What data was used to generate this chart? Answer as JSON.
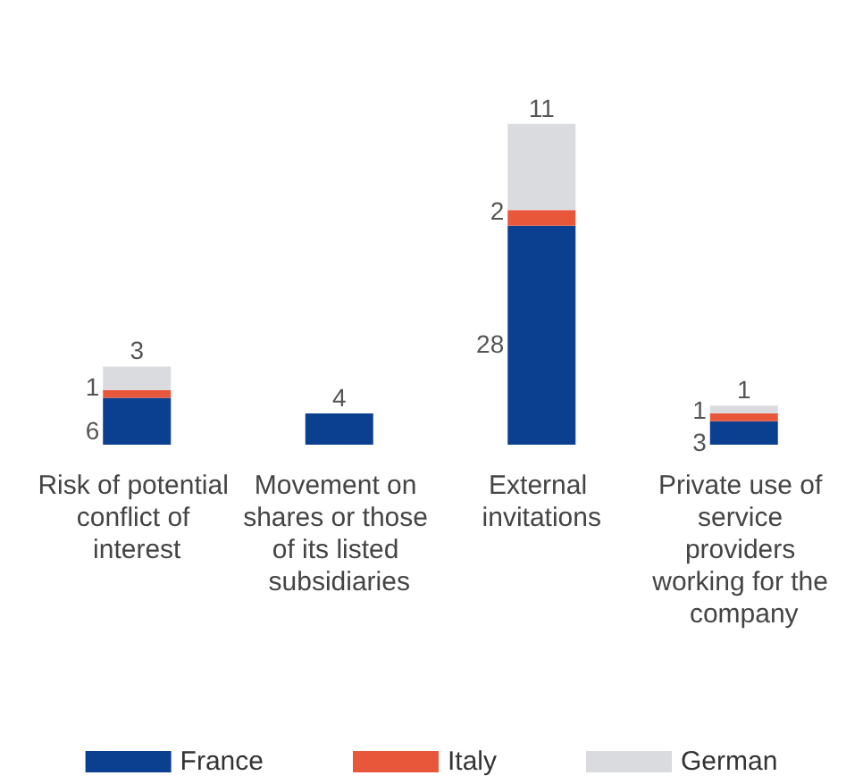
{
  "chart_data": {
    "type": "bar",
    "stacked": true,
    "data_labels": true,
    "legend": "bottom",
    "categories": [
      "Risk of potential conflict of interest",
      "Movement on shares or those of its listed subsidiaries",
      "External invitations",
      "Private use of service providers working for the company"
    ],
    "series": [
      {
        "name": "France",
        "color": "#0b3f8f",
        "values": [
          6,
          4,
          28,
          3
        ]
      },
      {
        "name": "Italy",
        "color": "#e9573b",
        "values": [
          1,
          null,
          2,
          1
        ]
      },
      {
        "name": "German",
        "color": "#d9dbde",
        "values": [
          3,
          null,
          11,
          1
        ]
      }
    ]
  }
}
